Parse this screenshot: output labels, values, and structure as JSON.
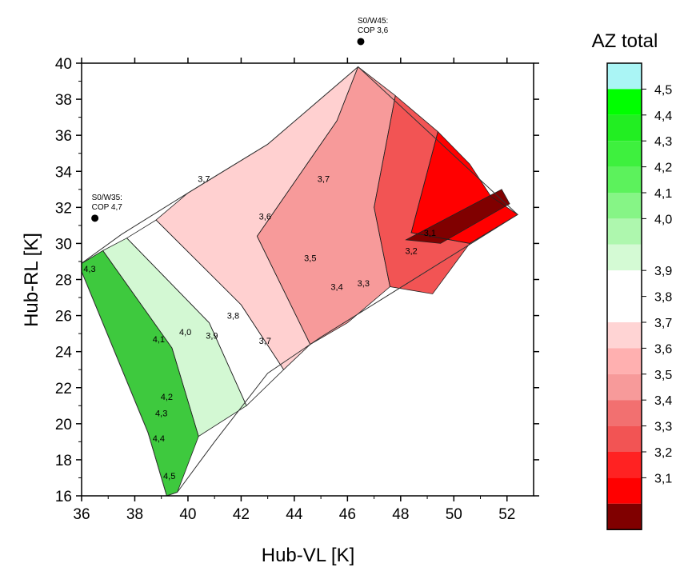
{
  "chart_data": {
    "type": "contour",
    "xlabel": "Hub-VL [K]",
    "ylabel": "Hub-RL [K]",
    "xlim": [
      36,
      53
    ],
    "ylim": [
      16,
      40
    ],
    "xticks": [
      "36",
      "38",
      "40",
      "42",
      "44",
      "46",
      "48",
      "50",
      "52"
    ],
    "yticks": [
      "16",
      "18",
      "20",
      "22",
      "24",
      "26",
      "28",
      "30",
      "32",
      "34",
      "36",
      "38",
      "40"
    ],
    "grid": false,
    "domain_boundary": [
      [
        35.9,
        28.8
      ],
      [
        37.5,
        30.5
      ],
      [
        40.0,
        32.8
      ],
      [
        43.0,
        35.5
      ],
      [
        46.4,
        39.8
      ],
      [
        52.4,
        31.6
      ],
      [
        45.0,
        24.8
      ],
      [
        43.0,
        22.8
      ],
      [
        41.0,
        19.0
      ],
      [
        39.6,
        16.2
      ],
      [
        39.2,
        16.0
      ],
      [
        38.5,
        19.5
      ],
      [
        35.9,
        28.8
      ]
    ],
    "zones": [
      {
        "range": [
          4.0,
          4.5
        ],
        "color": "#3ec93e",
        "polygon": [
          [
            35.9,
            28.8
          ],
          [
            36.8,
            29.6
          ],
          [
            39.4,
            24.2
          ],
          [
            40.4,
            19.3
          ],
          [
            39.6,
            16.2
          ],
          [
            39.2,
            16.0
          ],
          [
            38.5,
            19.5
          ]
        ]
      },
      {
        "range": [
          3.9,
          4.0
        ],
        "color": "#d3f8d3",
        "polygon": [
          [
            36.8,
            29.6
          ],
          [
            37.7,
            30.3
          ],
          [
            40.8,
            25.6
          ],
          [
            42.2,
            21.0
          ],
          [
            40.4,
            19.3
          ],
          [
            39.4,
            24.2
          ]
        ]
      },
      {
        "range": [
          3.7,
          3.9
        ],
        "color": "#ffffff",
        "polygon": [
          [
            37.7,
            30.3
          ],
          [
            38.8,
            31.3
          ],
          [
            42.0,
            26.6
          ],
          [
            43.6,
            23.0
          ],
          [
            42.2,
            21.0
          ],
          [
            40.8,
            25.6
          ]
        ]
      },
      {
        "range": [
          3.6,
          3.7
        ],
        "color": "#ffd0d0",
        "polygon": [
          [
            38.8,
            31.3
          ],
          [
            40.0,
            32.8
          ],
          [
            43.0,
            35.5
          ],
          [
            46.4,
            39.8
          ],
          [
            45.6,
            36.8
          ],
          [
            42.6,
            30.4
          ],
          [
            44.6,
            24.4
          ],
          [
            43.6,
            23.0
          ],
          [
            42.0,
            26.6
          ]
        ]
      },
      {
        "range": [
          3.4,
          3.6
        ],
        "color": "#f79a9a",
        "polygon": [
          [
            42.6,
            30.4
          ],
          [
            45.6,
            36.8
          ],
          [
            46.4,
            39.8
          ],
          [
            47.8,
            38.2
          ],
          [
            47.0,
            32.0
          ],
          [
            47.6,
            27.6
          ],
          [
            46.0,
            25.6
          ],
          [
            44.6,
            24.4
          ]
        ]
      },
      {
        "range": [
          3.2,
          3.4
        ],
        "color": "#f25454",
        "polygon": [
          [
            47.0,
            32.0
          ],
          [
            47.8,
            38.2
          ],
          [
            49.4,
            36.2
          ],
          [
            48.4,
            30.6
          ],
          [
            50.6,
            30.0
          ],
          [
            49.2,
            27.2
          ],
          [
            47.6,
            27.6
          ]
        ]
      },
      {
        "range": [
          3.1,
          3.2
        ],
        "color": "#ff0000",
        "polygon": [
          [
            48.4,
            30.6
          ],
          [
            49.4,
            36.2
          ],
          [
            50.6,
            34.4
          ],
          [
            51.4,
            32.6
          ],
          [
            52.4,
            31.6
          ],
          [
            50.6,
            30.0
          ]
        ]
      },
      {
        "range": [
          3.0,
          3.1
        ],
        "color": "#800000",
        "polygon": [
          [
            48.2,
            30.2
          ],
          [
            51.8,
            33.0
          ],
          [
            52.1,
            32.2
          ],
          [
            49.5,
            30.0
          ]
        ]
      }
    ],
    "contour_labels": [
      {
        "text": "4,3",
        "x": 36.3,
        "y": 28.6
      },
      {
        "text": "4,1",
        "x": 38.9,
        "y": 24.7
      },
      {
        "text": "4,0",
        "x": 39.9,
        "y": 25.1
      },
      {
        "text": "3,9",
        "x": 40.9,
        "y": 24.9
      },
      {
        "text": "3,8",
        "x": 41.7,
        "y": 26.0
      },
      {
        "text": "3,7",
        "x": 42.9,
        "y": 24.6
      },
      {
        "text": "4,2",
        "x": 39.2,
        "y": 21.5
      },
      {
        "text": "4,3",
        "x": 39.0,
        "y": 20.6
      },
      {
        "text": "4,4",
        "x": 38.9,
        "y": 19.2
      },
      {
        "text": "4,5",
        "x": 39.3,
        "y": 17.1
      },
      {
        "text": "3,7",
        "x": 40.6,
        "y": 33.6
      },
      {
        "text": "3,7",
        "x": 45.1,
        "y": 33.6
      },
      {
        "text": "3,6",
        "x": 42.9,
        "y": 31.5
      },
      {
        "text": "3,5",
        "x": 44.6,
        "y": 29.2
      },
      {
        "text": "3,4",
        "x": 45.6,
        "y": 27.6
      },
      {
        "text": "3,3",
        "x": 46.6,
        "y": 27.8
      },
      {
        "text": "3,2",
        "x": 48.4,
        "y": 29.6
      },
      {
        "text": "3,1",
        "x": 49.1,
        "y": 30.6
      }
    ],
    "points": [
      {
        "x": 36.5,
        "y": 31.4,
        "label_line1": "S0/W35:",
        "label_line2": "COP 4,7"
      },
      {
        "x": 46.5,
        "y": 41.2,
        "label_line1": "S0/W45:",
        "label_line2": "COP 3,6"
      }
    ],
    "colorbar": {
      "title": "AZ total",
      "bands": [
        {
          "value": "",
          "color": "#aaf5f5"
        },
        {
          "value": "4,5",
          "color": "#00ff00"
        },
        {
          "value": "4,4",
          "color": "#22ee22"
        },
        {
          "value": "4,3",
          "color": "#3ef03e"
        },
        {
          "value": "4,2",
          "color": "#5cf25c"
        },
        {
          "value": "4,1",
          "color": "#86f586"
        },
        {
          "value": "4,0",
          "color": "#aef7ae"
        },
        {
          "value": "",
          "color": "#d4fad4"
        },
        {
          "value": "3,9",
          "color": "#ffffff"
        },
        {
          "value": "3,8",
          "color": "#ffffff"
        },
        {
          "value": "3,7",
          "color": "#ffd4d4"
        },
        {
          "value": "3,6",
          "color": "#ffb0b0"
        },
        {
          "value": "3,5",
          "color": "#f79a9a"
        },
        {
          "value": "3,4",
          "color": "#f27070"
        },
        {
          "value": "3,3",
          "color": "#f25454"
        },
        {
          "value": "3,2",
          "color": "#ff2222"
        },
        {
          "value": "3,1",
          "color": "#ff0000"
        },
        {
          "value": "",
          "color": "#800000"
        }
      ]
    }
  }
}
